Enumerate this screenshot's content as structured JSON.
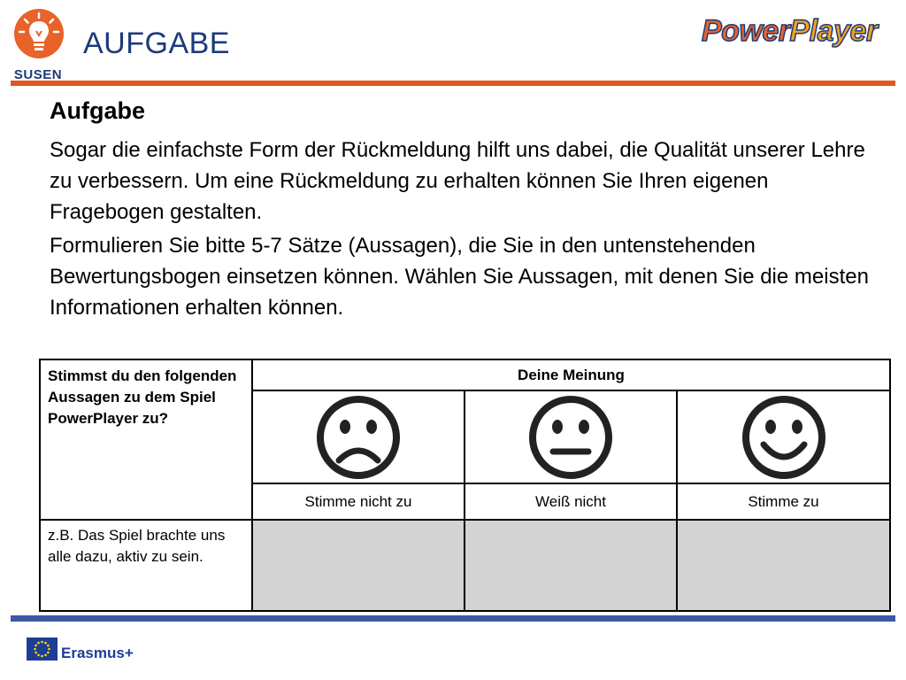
{
  "header": {
    "title": "AUFGABE",
    "susen_logo_text": "SUSEN",
    "powerplayer_logo": {
      "part1": "Power",
      "part2": "Player"
    }
  },
  "content": {
    "heading": "Aufgabe",
    "paragraph1": "Sogar die einfachste Form der Rückmeldung hilft uns dabei, die Qualität unserer Lehre zu verbessern. Um eine Rückmeldung zu erhalten können Sie Ihren eigenen Fragebogen gestalten.",
    "paragraph2": "Formulieren Sie bitte 5-7 Sätze (Aussagen), die Sie in den untenstehenden Bewertungsbogen einsetzen können. Wählen Sie Aussagen, mit denen Sie die meisten Informationen erhalten können."
  },
  "table": {
    "question_header": "Stimmst du den folgenden Aussagen zu dem Spiel PowerPlayer zu?",
    "opinion_header": "Deine Meinung",
    "faces": [
      "sad-face-icon",
      "neutral-face-icon",
      "happy-face-icon"
    ],
    "labels": [
      "Stimme nicht zu",
      "Weiß nicht",
      "Stimme zu"
    ],
    "example_row": "z.B. Das Spiel brachte uns alle dazu, aktiv zu sein."
  },
  "footer": {
    "erasmus_text": "Erasmus+"
  },
  "colors": {
    "title_blue": "#1d3b7a",
    "orange_rule": "#e0571f",
    "blue_rule": "#3b5aa5",
    "cell_gray": "#d3d3d3",
    "eu_blue": "#1e3d96",
    "eu_star_yellow": "#ffdd00"
  }
}
